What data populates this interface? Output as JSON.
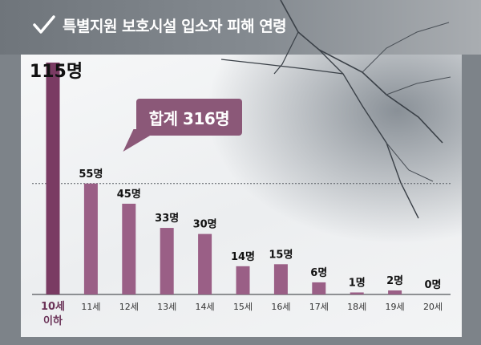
{
  "header": {
    "title": "특별지원 보호시설 입소자 피해 연령"
  },
  "callout": {
    "text": "합계 316명"
  },
  "colors": {
    "bar": "#9a5f86",
    "bar_first": "#7a3b63",
    "accent": "#8b5878"
  },
  "chart_data": {
    "type": "bar",
    "title": "특별지원 보호시설 입소자 피해 연령",
    "categories": [
      "10세 이하",
      "11세",
      "12세",
      "13세",
      "14세",
      "15세",
      "16세",
      "17세",
      "18세",
      "19세",
      "20세"
    ],
    "category_lines": [
      [
        "10세",
        "이하"
      ],
      [
        "11세"
      ],
      [
        "12세"
      ],
      [
        "13세"
      ],
      [
        "14세"
      ],
      [
        "15세"
      ],
      [
        "16세"
      ],
      [
        "17세"
      ],
      [
        "18세"
      ],
      [
        "19세"
      ],
      [
        "20세"
      ]
    ],
    "values": [
      115,
      55,
      45,
      33,
      30,
      14,
      15,
      6,
      1,
      2,
      0
    ],
    "value_labels": [
      "115명",
      "55명",
      "45명",
      "33명",
      "30명",
      "14명",
      "15명",
      "6명",
      "1명",
      "2명",
      "0명"
    ],
    "unit": "명",
    "total_label": "합계 316명",
    "ylim": [
      0,
      115
    ],
    "reference_line": 55,
    "grid": false,
    "legend": "none"
  }
}
